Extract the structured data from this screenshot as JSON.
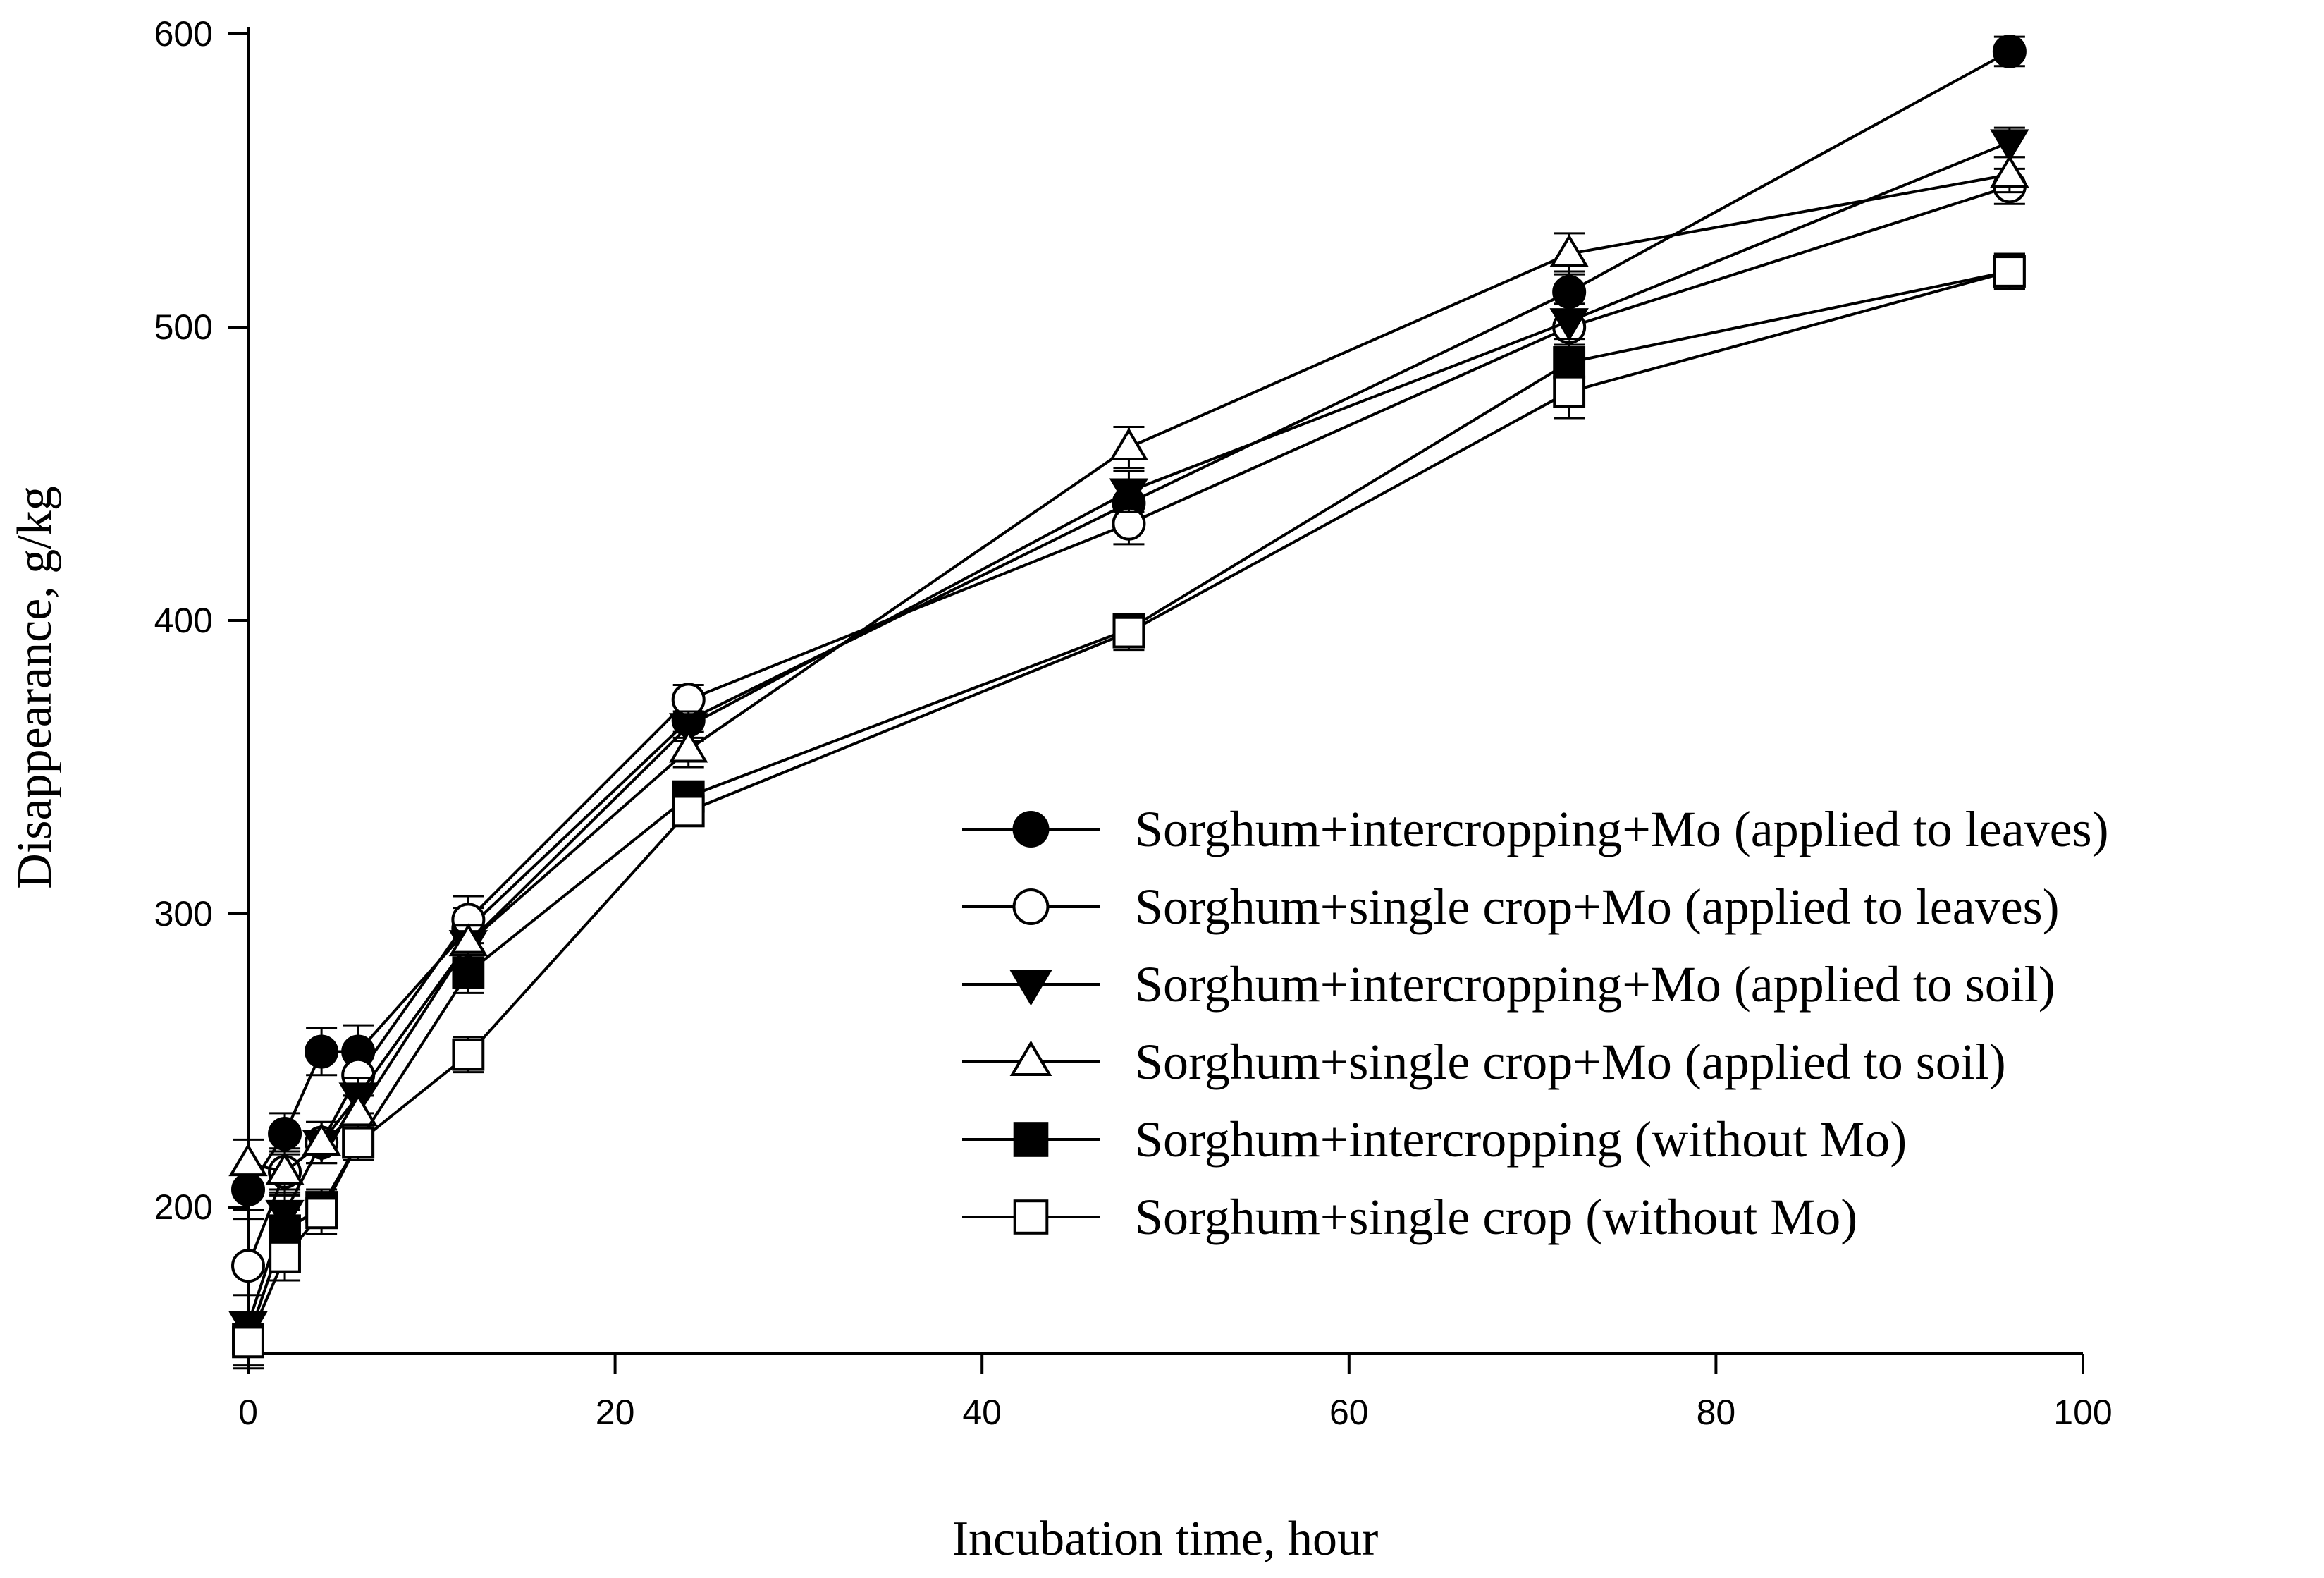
{
  "chart_data": {
    "type": "line",
    "title": "",
    "xlabel": "Incubation time, hour",
    "ylabel": "Disappearance, g/kg",
    "xlim": [
      0,
      100
    ],
    "ylim": [
      150,
      600
    ],
    "xticks": [
      0,
      20,
      40,
      60,
      80,
      100
    ],
    "yticks": [
      200,
      300,
      400,
      500,
      600
    ],
    "x": [
      0,
      2,
      4,
      6,
      12,
      24,
      48,
      72,
      96
    ],
    "legend_position": "bottom-right",
    "series": [
      {
        "name": "Sorghum+intercropping+Mo (applied to leaves)",
        "marker": "circle-filled",
        "values": [
          206,
          225,
          253,
          253,
          295,
          366,
          440,
          512,
          594
        ],
        "errors": [
          7,
          7,
          8,
          9,
          7,
          6,
          8,
          7,
          5
        ]
      },
      {
        "name": "Sorghum+single crop+Mo (applied to leaves)",
        "marker": "circle-open",
        "values": [
          180,
          212,
          222,
          245,
          298,
          373,
          433,
          500,
          548
        ],
        "errors": [
          16,
          8,
          7,
          7,
          8,
          5,
          7,
          6,
          6
        ]
      },
      {
        "name": "Sorghum+intercropping+Mo (applied to soil)",
        "marker": "triangle-down-filled",
        "values": [
          160,
          198,
          222,
          238,
          290,
          364,
          444,
          502,
          563
        ],
        "errors": [
          10,
          8,
          7,
          6,
          6,
          5,
          7,
          6,
          5
        ]
      },
      {
        "name": "Sorghum+single crop+Mo (applied to soil)",
        "marker": "triangle-up-open",
        "values": [
          215,
          212,
          222,
          232,
          290,
          356,
          459,
          525,
          552
        ],
        "errors": [
          8,
          7,
          7,
          6,
          6,
          6,
          7,
          7,
          6
        ]
      },
      {
        "name": "Sorghum+intercropping (without Mo)",
        "marker": "square-filled",
        "values": [
          155,
          192,
          200,
          222,
          280,
          340,
          397,
          488,
          519
        ],
        "errors": [
          9,
          7,
          6,
          6,
          7,
          5,
          5,
          6,
          6
        ]
      },
      {
        "name": "Sorghum+single crop (without Mo)",
        "marker": "square-open",
        "values": [
          154,
          183,
          198,
          222,
          252,
          335,
          396,
          478,
          519
        ],
        "errors": [
          9,
          8,
          7,
          6,
          6,
          5,
          6,
          9,
          6
        ]
      }
    ]
  }
}
